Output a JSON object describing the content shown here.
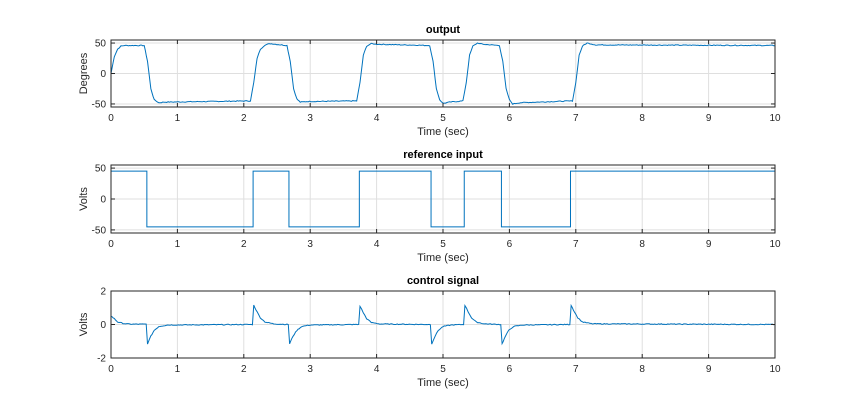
{
  "chart_data": [
    {
      "type": "line",
      "title": "output",
      "xlabel": "Time (sec)",
      "ylabel": "Degrees",
      "xlim": [
        0,
        10
      ],
      "ylim": [
        -55,
        55
      ],
      "x_ticks": [
        0,
        1,
        2,
        3,
        4,
        5,
        6,
        7,
        8,
        9,
        10
      ],
      "y_ticks": [
        -50,
        0,
        50
      ],
      "grid": true,
      "series": [
        {
          "values_description_kind": "step_response",
          "color": "#0072bd",
          "points": [
            [
              0,
              0
            ],
            [
              0.05,
              28
            ],
            [
              0.1,
              40
            ],
            [
              0.15,
              45
            ],
            [
              0.2,
              46
            ],
            [
              0.5,
              46
            ],
            [
              0.55,
              20
            ],
            [
              0.6,
              -25
            ],
            [
              0.65,
              -43
            ],
            [
              0.72,
              -48
            ],
            [
              0.8,
              -47
            ],
            [
              2.1,
              -45
            ],
            [
              2.15,
              -15
            ],
            [
              2.2,
              25
            ],
            [
              2.25,
              40
            ],
            [
              2.32,
              47
            ],
            [
              2.4,
              49
            ],
            [
              2.65,
              46
            ],
            [
              2.7,
              20
            ],
            [
              2.75,
              -25
            ],
            [
              2.8,
              -42
            ],
            [
              2.85,
              -47
            ],
            [
              2.95,
              -46
            ],
            [
              3.7,
              -45
            ],
            [
              3.75,
              -15
            ],
            [
              3.8,
              30
            ],
            [
              3.85,
              45
            ],
            [
              3.92,
              49
            ],
            [
              4.0,
              48
            ],
            [
              4.8,
              46
            ],
            [
              4.85,
              20
            ],
            [
              4.9,
              -25
            ],
            [
              4.95,
              -43
            ],
            [
              5.0,
              -49
            ],
            [
              5.1,
              -47
            ],
            [
              5.3,
              -45
            ],
            [
              5.35,
              -15
            ],
            [
              5.4,
              30
            ],
            [
              5.45,
              45
            ],
            [
              5.52,
              50
            ],
            [
              5.6,
              48
            ],
            [
              5.85,
              46
            ],
            [
              5.9,
              20
            ],
            [
              5.95,
              -25
            ],
            [
              6.0,
              -43
            ],
            [
              6.05,
              -50
            ],
            [
              6.15,
              -48
            ],
            [
              6.95,
              -45
            ],
            [
              7.0,
              -15
            ],
            [
              7.05,
              30
            ],
            [
              7.1,
              45
            ],
            [
              7.17,
              50
            ],
            [
              7.3,
              47
            ],
            [
              10,
              46
            ]
          ]
        }
      ]
    },
    {
      "type": "line",
      "title": "reference input",
      "xlabel": "Time (sec)",
      "ylabel": "Volts",
      "xlim": [
        0,
        10
      ],
      "ylim": [
        -55,
        55
      ],
      "x_ticks": [
        0,
        1,
        2,
        3,
        4,
        5,
        6,
        7,
        8,
        9,
        10
      ],
      "y_ticks": [
        -50,
        0,
        50
      ],
      "grid": true,
      "series": [
        {
          "color": "#0072bd",
          "points": [
            [
              0,
              45
            ],
            [
              0.54,
              45
            ],
            [
              0.54,
              -45
            ],
            [
              2.14,
              -45
            ],
            [
              2.14,
              45
            ],
            [
              2.68,
              45
            ],
            [
              2.68,
              -45
            ],
            [
              3.74,
              -45
            ],
            [
              3.74,
              45
            ],
            [
              4.82,
              45
            ],
            [
              4.82,
              -45
            ],
            [
              5.32,
              -45
            ],
            [
              5.32,
              45
            ],
            [
              5.88,
              45
            ],
            [
              5.88,
              -45
            ],
            [
              6.92,
              -45
            ],
            [
              6.92,
              45
            ],
            [
              10,
              45
            ]
          ]
        }
      ]
    },
    {
      "type": "line",
      "title": "control signal",
      "xlabel": "Time (sec)",
      "ylabel": "Volts",
      "xlim": [
        0,
        10
      ],
      "ylim": [
        -2,
        2
      ],
      "x_ticks": [
        0,
        1,
        2,
        3,
        4,
        5,
        6,
        7,
        8,
        9,
        10
      ],
      "y_ticks": [
        -2,
        0,
        2
      ],
      "grid": true,
      "series": [
        {
          "color": "#0072bd",
          "points": [
            [
              0,
              0.5
            ],
            [
              0.05,
              0.35
            ],
            [
              0.1,
              0.15
            ],
            [
              0.2,
              0.05
            ],
            [
              0.3,
              0.02
            ],
            [
              0.53,
              0.02
            ],
            [
              0.55,
              -1.15
            ],
            [
              0.6,
              -0.7
            ],
            [
              0.65,
              -0.35
            ],
            [
              0.72,
              -0.12
            ],
            [
              0.85,
              -0.03
            ],
            [
              2.13,
              0
            ],
            [
              2.15,
              1.15
            ],
            [
              2.2,
              0.75
            ],
            [
              2.25,
              0.4
            ],
            [
              2.32,
              0.15
            ],
            [
              2.45,
              0.04
            ],
            [
              2.67,
              0
            ],
            [
              2.69,
              -1.15
            ],
            [
              2.74,
              -0.7
            ],
            [
              2.8,
              -0.35
            ],
            [
              2.87,
              -0.12
            ],
            [
              3.0,
              -0.03
            ],
            [
              3.73,
              0
            ],
            [
              3.75,
              1.1
            ],
            [
              3.8,
              0.7
            ],
            [
              3.85,
              0.35
            ],
            [
              3.92,
              0.12
            ],
            [
              4.05,
              0.03
            ],
            [
              4.81,
              0
            ],
            [
              4.83,
              -1.15
            ],
            [
              4.88,
              -0.7
            ],
            [
              4.93,
              -0.35
            ],
            [
              5.0,
              -0.12
            ],
            [
              5.12,
              -0.03
            ],
            [
              5.31,
              0
            ],
            [
              5.33,
              1.15
            ],
            [
              5.38,
              0.75
            ],
            [
              5.43,
              0.4
            ],
            [
              5.5,
              0.15
            ],
            [
              5.62,
              0.04
            ],
            [
              5.87,
              0
            ],
            [
              5.89,
              -1.15
            ],
            [
              5.94,
              -0.7
            ],
            [
              5.99,
              -0.35
            ],
            [
              6.06,
              -0.12
            ],
            [
              6.2,
              -0.03
            ],
            [
              6.91,
              0
            ],
            [
              6.93,
              1.15
            ],
            [
              6.98,
              0.75
            ],
            [
              7.03,
              0.4
            ],
            [
              7.1,
              0.15
            ],
            [
              7.25,
              0.04
            ],
            [
              10,
              0
            ]
          ]
        }
      ]
    }
  ]
}
